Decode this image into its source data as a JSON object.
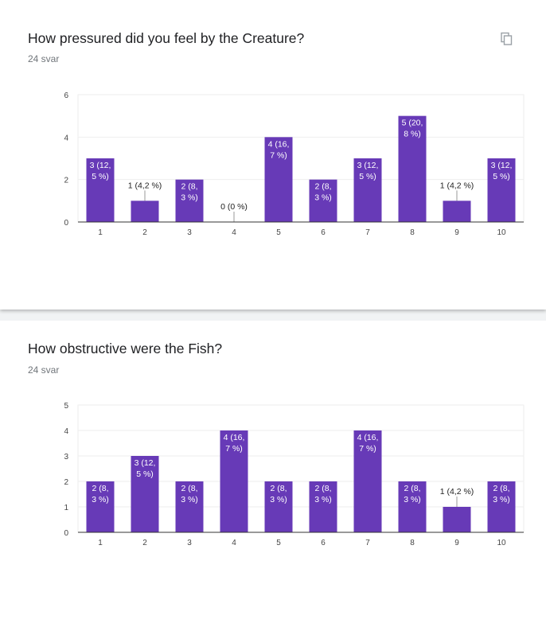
{
  "questions": [
    {
      "title": "How pressured did you feel by the Creature?",
      "count": "24 svar"
    },
    {
      "title": "How obstructive were the Fish?",
      "count": "24 svar"
    }
  ],
  "colors": {
    "bar": "#673ab7",
    "grid": "#eeeeee",
    "axis": "#333333",
    "tick": "#444444"
  },
  "icons": {
    "copy": "copy-icon"
  },
  "chart_data": [
    {
      "type": "bar",
      "title": "How pressured did you feel by the Creature?",
      "categories": [
        "1",
        "2",
        "3",
        "4",
        "5",
        "6",
        "7",
        "8",
        "9",
        "10"
      ],
      "values": [
        3,
        1,
        2,
        0,
        4,
        2,
        3,
        5,
        1,
        3
      ],
      "labels": [
        [
          "3 (12,",
          "5 %)"
        ],
        [
          "1 (4,2 %)"
        ],
        [
          "2 (8,",
          "3 %)"
        ],
        [
          "0 (0 %)"
        ],
        [
          "4 (16,",
          "7 %)"
        ],
        [
          "2 (8,",
          "3 %)"
        ],
        [
          "3 (12,",
          "5 %)"
        ],
        [
          "5 (20,",
          "8 %)"
        ],
        [
          "1 (4,2 %)"
        ],
        [
          "3 (12,",
          "5 %)"
        ]
      ],
      "yticks": [
        0,
        2,
        4,
        6
      ],
      "ylim": [
        0,
        6
      ],
      "xlabel": "",
      "ylabel": ""
    },
    {
      "type": "bar",
      "title": "How obstructive were the Fish?",
      "categories": [
        "1",
        "2",
        "3",
        "4",
        "5",
        "6",
        "7",
        "8",
        "9",
        "10"
      ],
      "values": [
        2,
        3,
        2,
        4,
        2,
        2,
        4,
        2,
        1,
        2
      ],
      "labels": [
        [
          "2 (8,",
          "3 %)"
        ],
        [
          "3 (12,",
          "5 %)"
        ],
        [
          "2 (8,",
          "3 %)"
        ],
        [
          "4 (16,",
          "7 %)"
        ],
        [
          "2 (8,",
          "3 %)"
        ],
        [
          "2 (8,",
          "3 %)"
        ],
        [
          "4 (16,",
          "7 %)"
        ],
        [
          "2 (8,",
          "3 %)"
        ],
        [
          "1 (4,2 %)"
        ],
        [
          "2 (8,",
          "3 %)"
        ]
      ],
      "yticks": [
        0,
        1,
        2,
        3,
        4,
        5
      ],
      "ylim": [
        0,
        5
      ],
      "xlabel": "",
      "ylabel": ""
    }
  ]
}
